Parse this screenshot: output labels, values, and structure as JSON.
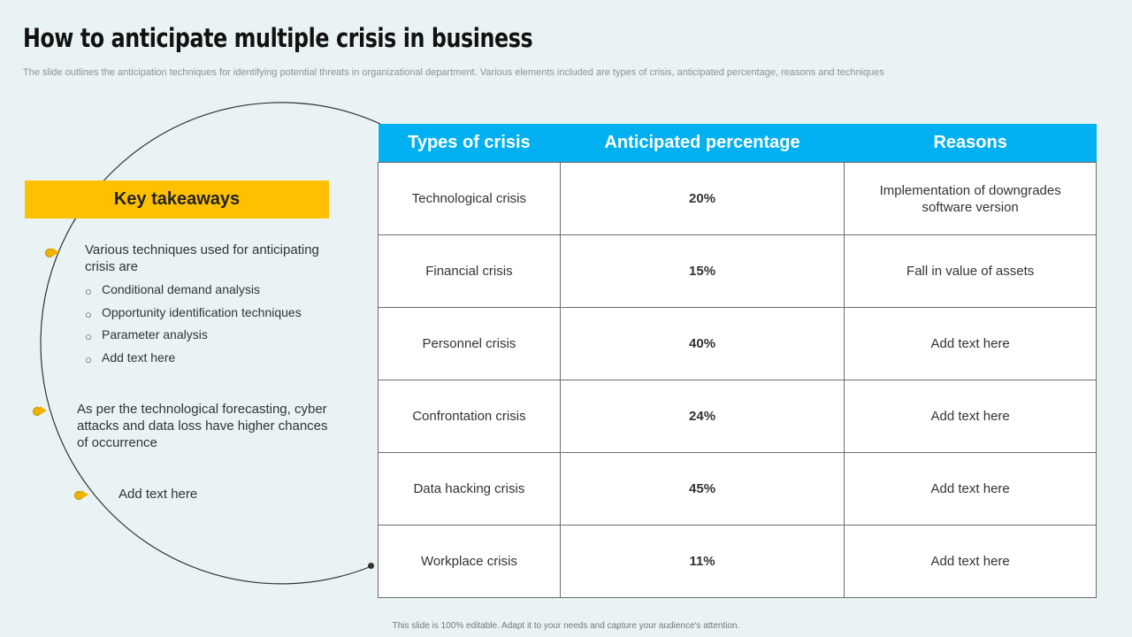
{
  "header": {
    "title": "How to anticipate multiple crisis in business",
    "subtitle": "The slide outlines the anticipation techniques for identifying potential threats in organizational department. Various elements included are types of crisis, anticipated percentage, reasons and techniques"
  },
  "takeaways": {
    "heading": "Key takeaways",
    "point1": "Various techniques used for anticipating crisis are",
    "techniques": [
      "Conditional demand analysis",
      "Opportunity identification techniques",
      "Parameter analysis",
      "Add text here"
    ],
    "point2": "As per the technological forecasting, cyber attacks and data loss have higher chances of occurrence",
    "point3": "Add text here"
  },
  "table": {
    "headers": [
      "Types of crisis",
      "Anticipated percentage",
      "Reasons"
    ],
    "rows": [
      {
        "type": "Technological crisis",
        "percentage": "20%",
        "reason": "Implementation of downgrades software version"
      },
      {
        "type": "Financial crisis",
        "percentage": "15%",
        "reason": "Fall in value of assets"
      },
      {
        "type": "Personnel crisis",
        "percentage": "40%",
        "reason": "Add text here"
      },
      {
        "type": "Confrontation crisis",
        "percentage": "24%",
        "reason": "Add text here"
      },
      {
        "type": "Data hacking crisis",
        "percentage": "45%",
        "reason": "Add text here"
      },
      {
        "type": "Workplace crisis",
        "percentage": "11%",
        "reason": "Add text here"
      }
    ]
  },
  "footer": "This slide is 100% editable. Adapt it to your needs and capture your audience's attention.",
  "colors": {
    "background": "#e9f3f4",
    "table_header": "#00b0f0",
    "accent_yellow": "#ffc000"
  }
}
